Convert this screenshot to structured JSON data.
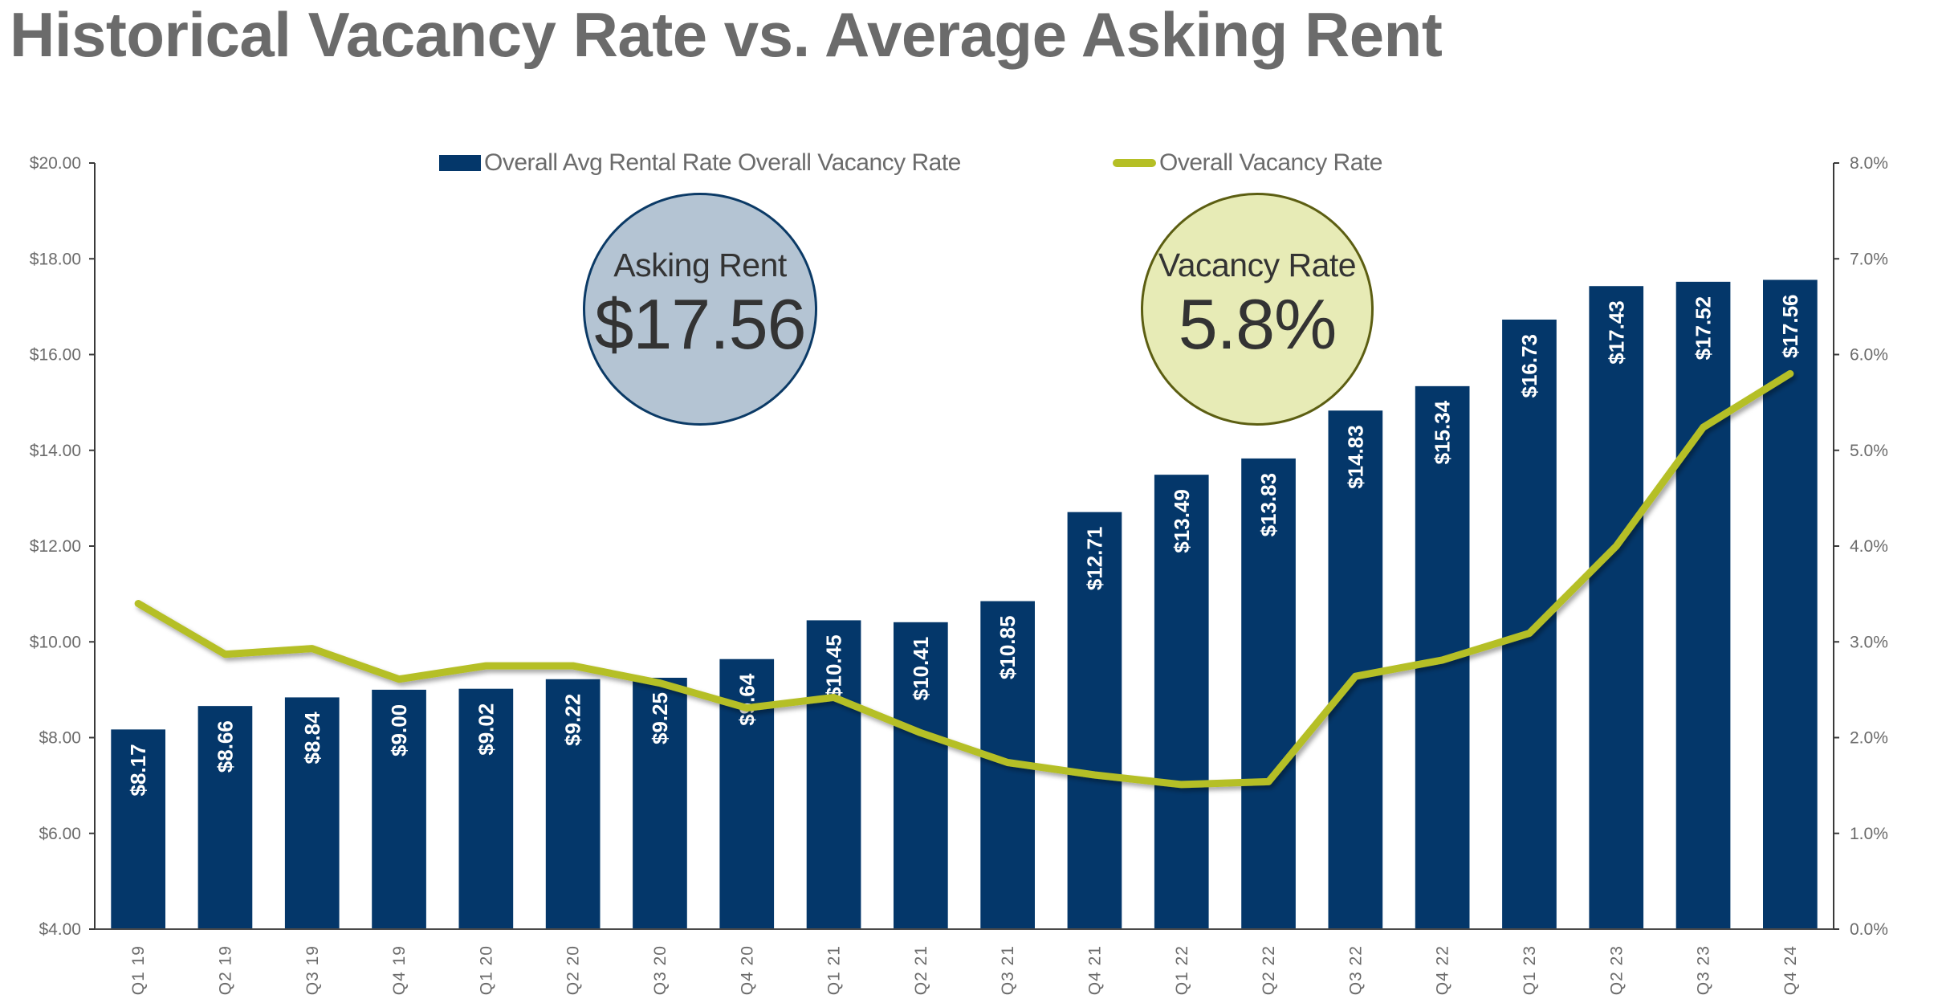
{
  "title": "Historical Vacancy Rate vs. Average Asking Rent",
  "legend": {
    "bar_label": "Overall Avg Rental Rate Overall Vacancy Rate",
    "line_label": "Overall Vacancy Rate"
  },
  "callouts": {
    "rent": {
      "label": "Asking Rent",
      "value": "$17.56"
    },
    "vacancy": {
      "label": "Vacancy Rate",
      "value": "5.8%"
    }
  },
  "colors": {
    "bar": "#04376a",
    "line": "#b5bf25",
    "text": "#6b6b6b"
  },
  "chart_data": {
    "type": "bar",
    "title": "Historical Vacancy Rate vs. Average Asking Rent",
    "xlabel": "",
    "ylabel": "",
    "categories": [
      "Q1 19",
      "Q2 19",
      "Q3 19",
      "Q4 19",
      "Q1 20",
      "Q2 20",
      "Q3 20",
      "Q4 20",
      "Q1 21",
      "Q2 21",
      "Q3 21",
      "Q4 21",
      "Q1 22",
      "Q2 22",
      "Q3 22",
      "Q4 22",
      "Q1 23",
      "Q2 23",
      "Q3 23",
      "Q4 24"
    ],
    "series": [
      {
        "name": "Overall Avg Rental Rate Overall Vacancy Rate",
        "type": "bar",
        "axis": "left",
        "values": [
          8.17,
          8.66,
          8.84,
          9.0,
          9.02,
          9.22,
          9.25,
          9.64,
          10.45,
          10.41,
          10.85,
          12.71,
          13.49,
          13.83,
          14.83,
          15.34,
          16.73,
          17.43,
          17.52,
          17.56
        ],
        "data_labels": [
          "$8.17",
          "$8.66",
          "$8.84",
          "$9.00",
          "$9.02",
          "$9.22",
          "$9.25",
          "$9.64",
          "$10.45",
          "$10.41",
          "$10.85",
          "$12.71",
          "$13.49",
          "$13.83",
          "$14.83",
          "$15.34",
          "$16.73",
          "$17.43",
          "$17.52",
          "$17.56"
        ]
      },
      {
        "name": "Overall Vacancy Rate",
        "type": "line",
        "axis": "right",
        "values": [
          3.4,
          2.87,
          2.93,
          2.61,
          2.75,
          2.75,
          2.57,
          2.31,
          2.42,
          2.05,
          1.74,
          1.61,
          1.51,
          1.54,
          2.64,
          2.81,
          3.09,
          4.0,
          5.24,
          5.8
        ]
      }
    ],
    "left_axis": {
      "ylim": [
        4,
        20
      ],
      "ticks": [
        4,
        6,
        8,
        10,
        12,
        14,
        16,
        18,
        20
      ],
      "tick_labels": [
        "$4.00",
        "$6.00",
        "$8.00",
        "$10.00",
        "$12.00",
        "$14.00",
        "$16.00",
        "$18.00",
        "$20.00"
      ]
    },
    "right_axis": {
      "ylim": [
        0,
        8
      ],
      "ticks": [
        0,
        1,
        2,
        3,
        4,
        5,
        6,
        7,
        8
      ],
      "tick_labels": [
        "0.0%",
        "1.0%",
        "2.0%",
        "3.0%",
        "4.0%",
        "5.0%",
        "6.0%",
        "7.0%",
        "8.0%"
      ]
    },
    "grid": false,
    "legend_position": "top"
  }
}
